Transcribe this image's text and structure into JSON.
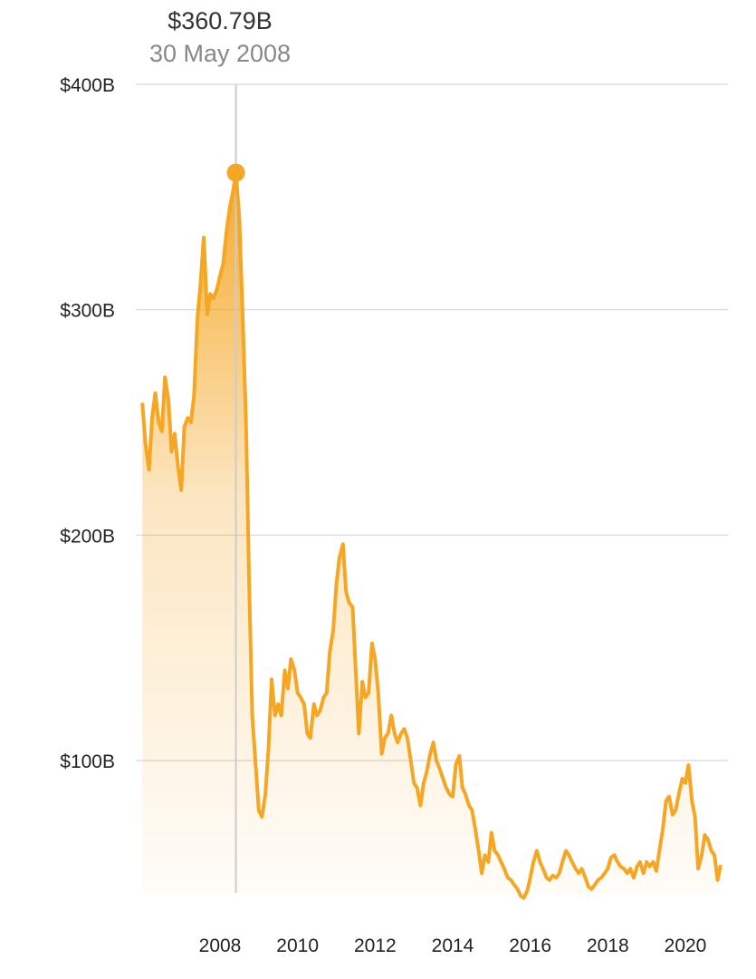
{
  "tooltip": {
    "value": "$360.79B",
    "date": "30 May 2008"
  },
  "chart_data": {
    "type": "area",
    "title": "",
    "xlabel": "",
    "ylabel": "",
    "x_range": [
      2006.0,
      2020.9
    ],
    "ylim": [
      0,
      400
    ],
    "yticks": [
      {
        "value": 100,
        "label": "$100B"
      },
      {
        "value": 200,
        "label": "$200B"
      },
      {
        "value": 300,
        "label": "$300B"
      },
      {
        "value": 400,
        "label": "$400B"
      }
    ],
    "xticks": [
      {
        "value": 2008,
        "label": "2008"
      },
      {
        "value": 2010,
        "label": "2010"
      },
      {
        "value": 2012,
        "label": "2012"
      },
      {
        "value": 2014,
        "label": "2014"
      },
      {
        "value": 2016,
        "label": "2016"
      },
      {
        "value": 2018,
        "label": "2018"
      },
      {
        "value": 2020,
        "label": "2020"
      }
    ],
    "grid": "horizontal",
    "highlight": {
      "x": 2008.41,
      "y": 360.79
    },
    "series": [
      {
        "color": "#F5A623",
        "points": [
          [
            2006.0,
            258
          ],
          [
            2006.08,
            240
          ],
          [
            2006.17,
            229
          ],
          [
            2006.25,
            252
          ],
          [
            2006.33,
            263
          ],
          [
            2006.42,
            250
          ],
          [
            2006.5,
            246
          ],
          [
            2006.58,
            270
          ],
          [
            2006.67,
            260
          ],
          [
            2006.75,
            237
          ],
          [
            2006.83,
            245
          ],
          [
            2006.92,
            230
          ],
          [
            2007.0,
            220
          ],
          [
            2007.08,
            248
          ],
          [
            2007.17,
            252
          ],
          [
            2007.25,
            250
          ],
          [
            2007.33,
            262
          ],
          [
            2007.42,
            297
          ],
          [
            2007.5,
            312
          ],
          [
            2007.58,
            332
          ],
          [
            2007.67,
            298
          ],
          [
            2007.75,
            307
          ],
          [
            2007.83,
            305
          ],
          [
            2007.92,
            309
          ],
          [
            2008.0,
            315
          ],
          [
            2008.08,
            320
          ],
          [
            2008.17,
            335
          ],
          [
            2008.25,
            345
          ],
          [
            2008.33,
            352
          ],
          [
            2008.41,
            360.79
          ],
          [
            2008.5,
            340
          ],
          [
            2008.58,
            300
          ],
          [
            2008.67,
            250
          ],
          [
            2008.75,
            180
          ],
          [
            2008.83,
            120
          ],
          [
            2008.92,
            98
          ],
          [
            2009.0,
            78
          ],
          [
            2009.08,
            75
          ],
          [
            2009.17,
            85
          ],
          [
            2009.25,
            105
          ],
          [
            2009.33,
            136
          ],
          [
            2009.42,
            120
          ],
          [
            2009.5,
            125
          ],
          [
            2009.58,
            120
          ],
          [
            2009.67,
            140
          ],
          [
            2009.75,
            132
          ],
          [
            2009.83,
            145
          ],
          [
            2009.92,
            140
          ],
          [
            2010.0,
            130
          ],
          [
            2010.08,
            128
          ],
          [
            2010.17,
            125
          ],
          [
            2010.25,
            112
          ],
          [
            2010.33,
            110
          ],
          [
            2010.42,
            125
          ],
          [
            2010.5,
            120
          ],
          [
            2010.58,
            122
          ],
          [
            2010.67,
            128
          ],
          [
            2010.75,
            130
          ],
          [
            2010.83,
            148
          ],
          [
            2010.92,
            158
          ],
          [
            2011.0,
            178
          ],
          [
            2011.08,
            190
          ],
          [
            2011.17,
            196
          ],
          [
            2011.25,
            175
          ],
          [
            2011.33,
            170
          ],
          [
            2011.42,
            168
          ],
          [
            2011.5,
            140
          ],
          [
            2011.58,
            112
          ],
          [
            2011.67,
            135
          ],
          [
            2011.75,
            128
          ],
          [
            2011.83,
            130
          ],
          [
            2011.92,
            152
          ],
          [
            2012.0,
            145
          ],
          [
            2012.08,
            130
          ],
          [
            2012.17,
            103
          ],
          [
            2012.25,
            110
          ],
          [
            2012.33,
            112
          ],
          [
            2012.42,
            120
          ],
          [
            2012.5,
            112
          ],
          [
            2012.58,
            108
          ],
          [
            2012.67,
            112
          ],
          [
            2012.75,
            114
          ],
          [
            2012.83,
            110
          ],
          [
            2012.92,
            100
          ],
          [
            2013.0,
            90
          ],
          [
            2013.08,
            88
          ],
          [
            2013.17,
            80
          ],
          [
            2013.25,
            90
          ],
          [
            2013.33,
            95
          ],
          [
            2013.42,
            103
          ],
          [
            2013.5,
            108
          ],
          [
            2013.58,
            100
          ],
          [
            2013.67,
            96
          ],
          [
            2013.75,
            92
          ],
          [
            2013.83,
            88
          ],
          [
            2013.92,
            85
          ],
          [
            2014.0,
            84
          ],
          [
            2014.08,
            98
          ],
          [
            2014.17,
            102
          ],
          [
            2014.25,
            88
          ],
          [
            2014.33,
            85
          ],
          [
            2014.42,
            80
          ],
          [
            2014.5,
            78
          ],
          [
            2014.58,
            70
          ],
          [
            2014.67,
            60
          ],
          [
            2014.75,
            50
          ],
          [
            2014.83,
            58
          ],
          [
            2014.92,
            55
          ],
          [
            2015.0,
            68
          ],
          [
            2015.08,
            60
          ],
          [
            2015.17,
            58
          ],
          [
            2015.25,
            55
          ],
          [
            2015.33,
            52
          ],
          [
            2015.42,
            48
          ],
          [
            2015.5,
            47
          ],
          [
            2015.58,
            45
          ],
          [
            2015.67,
            43
          ],
          [
            2015.75,
            40
          ],
          [
            2015.83,
            39
          ],
          [
            2015.92,
            42
          ],
          [
            2016.0,
            48
          ],
          [
            2016.08,
            55
          ],
          [
            2016.17,
            60
          ],
          [
            2016.25,
            55
          ],
          [
            2016.33,
            52
          ],
          [
            2016.42,
            48
          ],
          [
            2016.5,
            47
          ],
          [
            2016.58,
            49
          ],
          [
            2016.67,
            48
          ],
          [
            2016.75,
            50
          ],
          [
            2016.83,
            55
          ],
          [
            2016.92,
            60
          ],
          [
            2017.0,
            58
          ],
          [
            2017.08,
            55
          ],
          [
            2017.17,
            52
          ],
          [
            2017.25,
            50
          ],
          [
            2017.33,
            52
          ],
          [
            2017.42,
            48
          ],
          [
            2017.5,
            44
          ],
          [
            2017.58,
            43
          ],
          [
            2017.67,
            45
          ],
          [
            2017.75,
            47
          ],
          [
            2017.83,
            48
          ],
          [
            2017.92,
            50
          ],
          [
            2018.0,
            52
          ],
          [
            2018.08,
            57
          ],
          [
            2018.17,
            58
          ],
          [
            2018.25,
            55
          ],
          [
            2018.33,
            53
          ],
          [
            2018.42,
            52
          ],
          [
            2018.5,
            50
          ],
          [
            2018.58,
            52
          ],
          [
            2018.67,
            48
          ],
          [
            2018.75,
            53
          ],
          [
            2018.83,
            55
          ],
          [
            2018.92,
            50
          ],
          [
            2019.0,
            55
          ],
          [
            2019.08,
            53
          ],
          [
            2019.17,
            55
          ],
          [
            2019.25,
            51
          ],
          [
            2019.33,
            60
          ],
          [
            2019.42,
            70
          ],
          [
            2019.5,
            82
          ],
          [
            2019.58,
            84
          ],
          [
            2019.67,
            76
          ],
          [
            2019.75,
            78
          ],
          [
            2019.83,
            85
          ],
          [
            2019.92,
            92
          ],
          [
            2020.0,
            90
          ],
          [
            2020.08,
            98
          ],
          [
            2020.17,
            82
          ],
          [
            2020.25,
            75
          ],
          [
            2020.33,
            52
          ],
          [
            2020.42,
            58
          ],
          [
            2020.5,
            67
          ],
          [
            2020.58,
            65
          ],
          [
            2020.67,
            60
          ],
          [
            2020.75,
            58
          ],
          [
            2020.83,
            47
          ],
          [
            2020.9,
            53
          ]
        ]
      }
    ]
  }
}
